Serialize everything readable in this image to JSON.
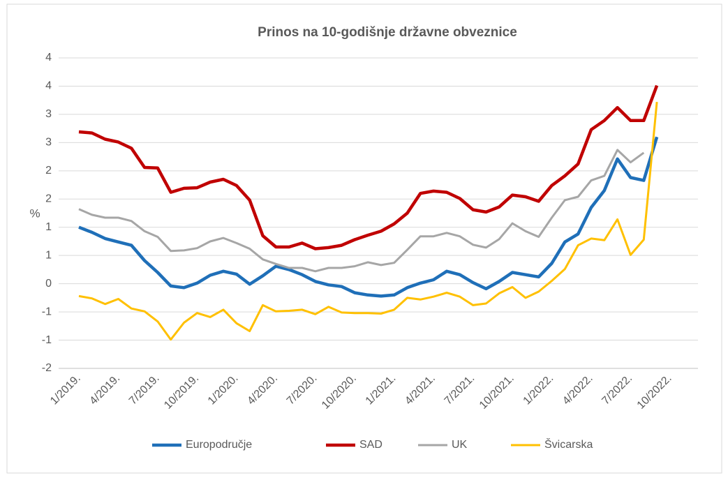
{
  "chart_data": {
    "type": "line",
    "title": "Prinos na 10-godišnje državne obveznice",
    "ylabel": "%",
    "categories": [
      "1/2019.",
      null,
      null,
      "4/2019.",
      null,
      null,
      "7/2019.",
      null,
      null,
      "10/2019.",
      null,
      null,
      "1/2020.",
      null,
      null,
      "4/2020.",
      null,
      null,
      "7/2020.",
      null,
      null,
      "10/2020.",
      null,
      null,
      "1/2021.",
      null,
      null,
      "4/2021.",
      null,
      null,
      "7/2021.",
      null,
      null,
      "10/2021.",
      null,
      null,
      "1/2022.",
      null,
      null,
      "4/2022.",
      null,
      null,
      "7/2022.",
      null,
      null,
      "10/2022."
    ],
    "ylim": [
      -1.5,
      4
    ],
    "yticks": [
      {
        "value": -1.5,
        "label": "-2"
      },
      -1,
      {
        "value": -0.5,
        "label": "-1"
      },
      0,
      {
        "value": 0.5,
        "label": "1"
      },
      1,
      {
        "value": 1.5,
        "label": "2"
      },
      2,
      {
        "value": 2.5,
        "label": "3"
      },
      3,
      {
        "value": 3.5,
        "label": "4"
      },
      4
    ],
    "grid": true,
    "legend": "bottom",
    "series": [
      {
        "name": "Europodručje",
        "color": "#1f6fb8",
        "values": [
          1.0,
          0.91,
          0.8,
          0.74,
          0.68,
          0.41,
          0.2,
          -0.04,
          -0.07,
          0.01,
          0.15,
          0.22,
          0.17,
          -0.01,
          0.14,
          0.31,
          0.25,
          0.16,
          0.04,
          -0.02,
          -0.05,
          -0.16,
          -0.2,
          -0.22,
          -0.2,
          -0.07,
          0.01,
          0.07,
          0.22,
          0.16,
          0.02,
          -0.09,
          0.04,
          0.2,
          0.16,
          0.12,
          0.36,
          0.74,
          0.88,
          1.35,
          1.65,
          2.21,
          1.88,
          1.83,
          2.6,
          null
        ]
      },
      {
        "name": "SAD",
        "color": "#c00000",
        "values": [
          2.69,
          2.67,
          2.56,
          2.51,
          2.4,
          2.06,
          2.05,
          1.62,
          1.69,
          1.7,
          1.8,
          1.85,
          1.74,
          1.48,
          0.85,
          0.65,
          0.65,
          0.72,
          0.62,
          0.64,
          0.68,
          0.78,
          0.86,
          0.93,
          1.06,
          1.25,
          1.6,
          1.64,
          1.62,
          1.51,
          1.31,
          1.27,
          1.36,
          1.57,
          1.54,
          1.46,
          1.74,
          1.91,
          2.12,
          2.73,
          2.89,
          3.12,
          2.89,
          2.89,
          3.51,
          null
        ]
      },
      {
        "name": "UK",
        "color": "#a6a6a6",
        "values": [
          1.32,
          1.22,
          1.17,
          1.17,
          1.11,
          0.93,
          0.83,
          0.58,
          0.59,
          0.63,
          0.75,
          0.81,
          0.72,
          0.62,
          0.43,
          0.35,
          0.28,
          0.28,
          0.22,
          0.28,
          0.28,
          0.31,
          0.38,
          0.33,
          0.37,
          0.6,
          0.84,
          0.84,
          0.9,
          0.84,
          0.69,
          0.64,
          0.79,
          1.07,
          0.93,
          0.83,
          1.17,
          1.48,
          1.54,
          1.83,
          1.91,
          2.37,
          2.15,
          2.32,
          null,
          null
        ]
      },
      {
        "name": "Švicarska",
        "color": "#ffc000",
        "values": [
          -0.22,
          -0.26,
          -0.36,
          -0.27,
          -0.44,
          -0.49,
          -0.67,
          -0.99,
          -0.69,
          -0.52,
          -0.59,
          -0.46,
          -0.7,
          -0.84,
          -0.38,
          -0.49,
          -0.48,
          -0.46,
          -0.54,
          -0.41,
          -0.51,
          -0.52,
          -0.52,
          -0.53,
          -0.46,
          -0.25,
          -0.28,
          -0.23,
          -0.16,
          -0.23,
          -0.38,
          -0.35,
          -0.17,
          -0.06,
          -0.25,
          -0.14,
          0.05,
          0.26,
          0.68,
          0.8,
          0.77,
          1.14,
          0.51,
          0.78,
          3.22,
          null
        ]
      }
    ]
  }
}
